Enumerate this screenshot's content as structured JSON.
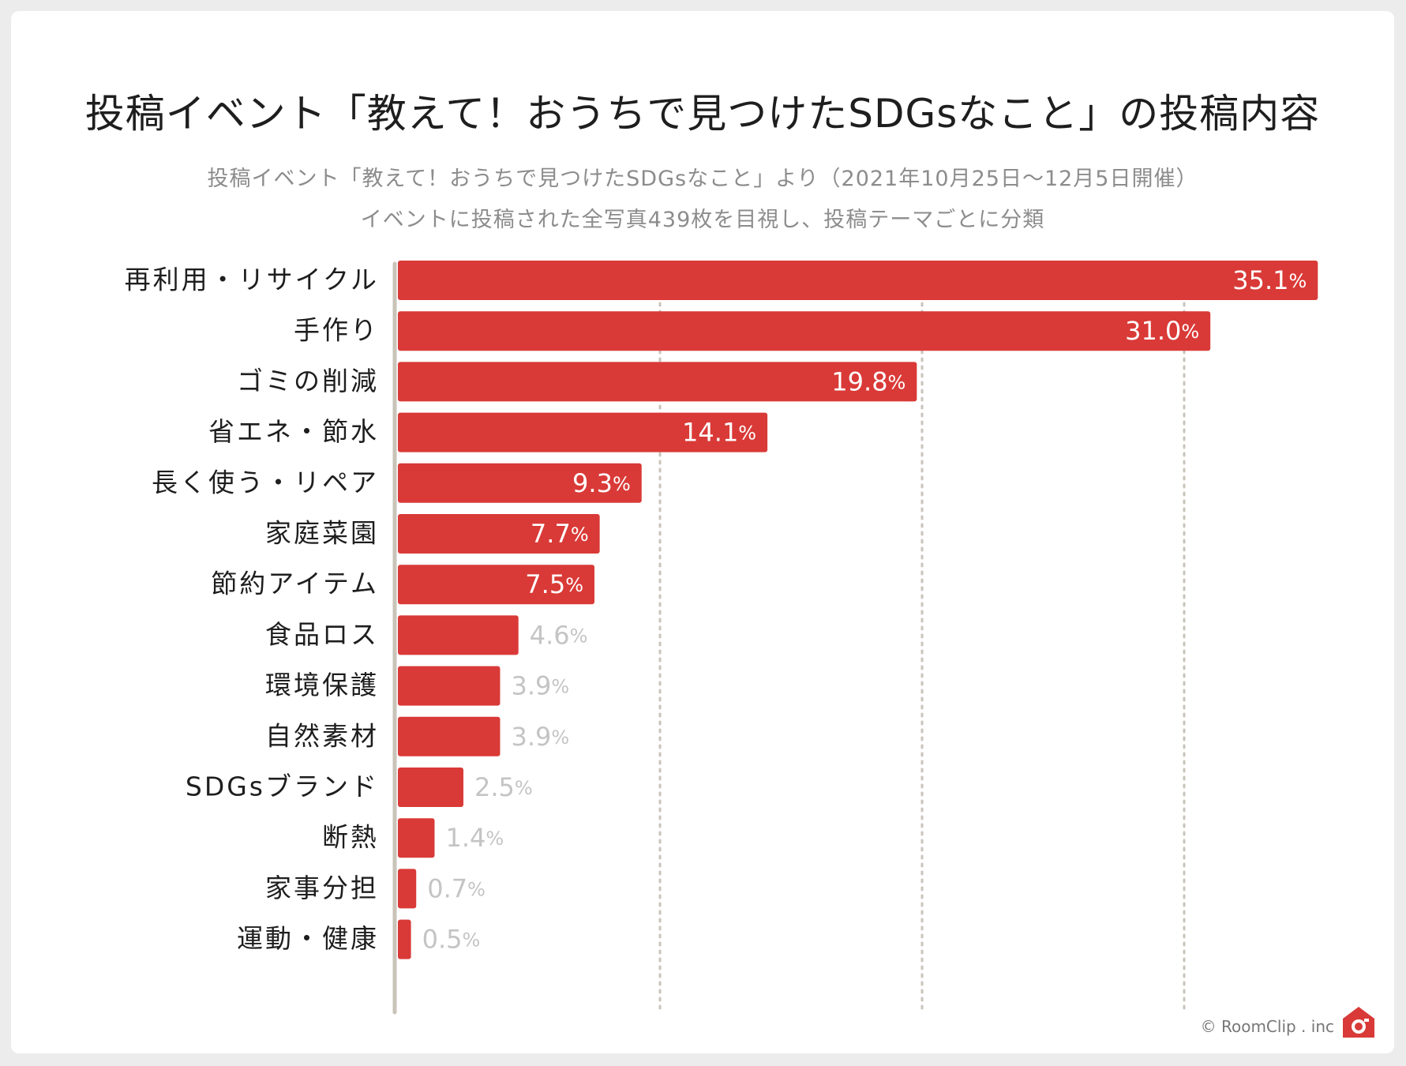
{
  "chart_data": {
    "type": "bar",
    "orientation": "horizontal",
    "title": "投稿イベント「教えて！おうちで見つけたSDGsなこと」の投稿内容",
    "subtitle_line1": "投稿イベント「教えて！おうちで見つけたSDGsなこと」より（2021年10月25日〜12月5日開催）",
    "subtitle_line2": "イベントに投稿された全写真439枚を目視し、投稿テーマごとに分類",
    "categories": [
      "再利用・リサイクル",
      "手作り",
      "ゴミの削減",
      "省エネ・節水",
      "長く使う・リペア",
      "家庭菜園",
      "節約アイテム",
      "食品ロス",
      "環境保護",
      "自然素材",
      "SDGsブランド",
      "断熱",
      "家事分担",
      "運動・健康"
    ],
    "values": [
      35.1,
      31.0,
      19.8,
      14.1,
      9.3,
      7.7,
      7.5,
      4.6,
      3.9,
      3.9,
      2.5,
      1.4,
      0.7,
      0.5
    ],
    "value_labels": [
      "35.1",
      "31.0",
      "19.8",
      "14.1",
      "9.3",
      "7.7",
      "7.5",
      "4.6",
      "3.9",
      "3.9",
      "2.5",
      "1.4",
      "0.7",
      "0.5"
    ],
    "unit": "%",
    "xlim": [
      0,
      40
    ],
    "gridlines": [
      10,
      20,
      30
    ],
    "xlabel": "",
    "ylabel": "",
    "grid": true,
    "legend": "none"
  },
  "colors": {
    "bar": "#d93a37",
    "label_inside": "#ffffff",
    "label_outside": "#c4c4c4",
    "axis": "#c9c3b9",
    "grid": "#c9c3b9",
    "category_text": "#1e1e1e"
  },
  "footer": {
    "credit": "© RoomClip . inc",
    "logo_icon": "camera-house-icon"
  }
}
